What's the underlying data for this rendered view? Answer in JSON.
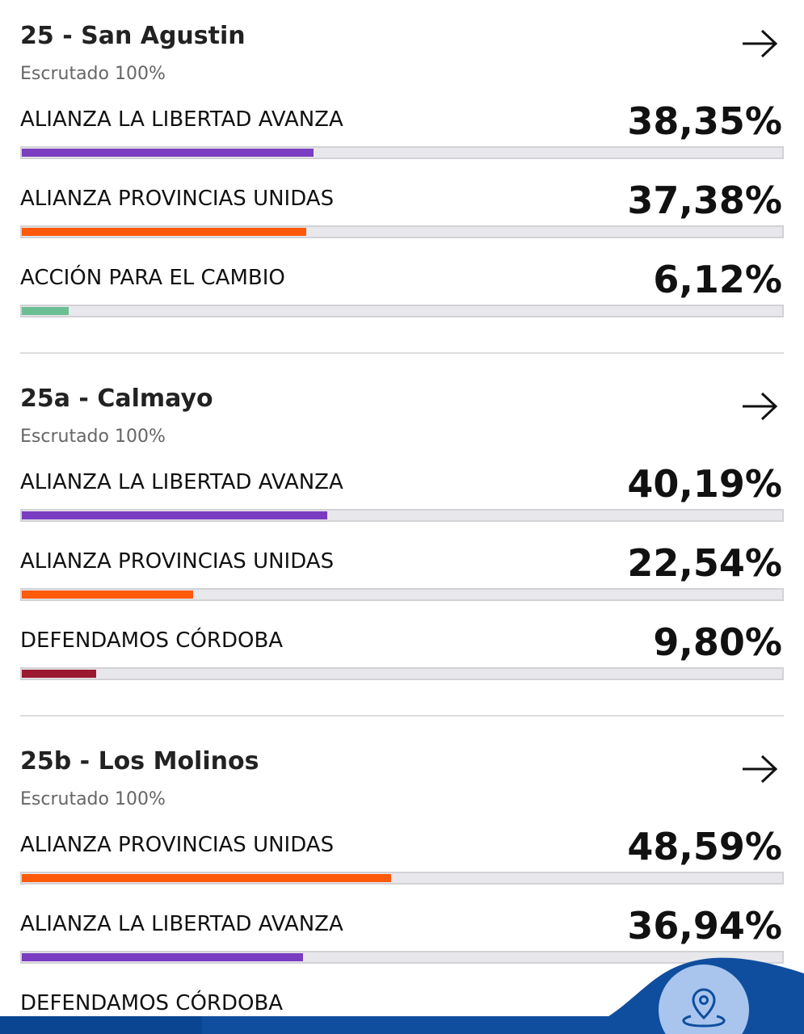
{
  "bar_range": [
    0,
    100
  ],
  "sections": [
    {
      "title": "25 - San Agustin",
      "status": "Escrutado 100%",
      "results": [
        {
          "party": "ALIANZA LA LIBERTAD AVANZA",
          "color": "#7a3cc0",
          "pct": {
            "value": 38.35,
            "label": "38,35%"
          }
        },
        {
          "party": "ALIANZA PROVINCIAS UNIDAS",
          "color": "#ff5a0c",
          "pct": {
            "value": 37.38,
            "label": "37,38%"
          }
        },
        {
          "party": "ACCIÓN PARA EL CAMBIO",
          "color": "#6cbf94",
          "pct": {
            "value": 6.12,
            "label": "6,12%"
          }
        }
      ]
    },
    {
      "title": "25a - Calmayo",
      "status": "Escrutado 100%",
      "results": [
        {
          "party": "ALIANZA LA LIBERTAD AVANZA",
          "color": "#7a3cc0",
          "pct": {
            "value": 40.19,
            "label": "40,19%"
          }
        },
        {
          "party": "ALIANZA PROVINCIAS UNIDAS",
          "color": "#ff5a0c",
          "pct": {
            "value": 22.54,
            "label": "22,54%"
          }
        },
        {
          "party": "DEFENDAMOS CÓRDOBA",
          "color": "#9a1830",
          "pct": {
            "value": 9.8,
            "label": "9,80%"
          }
        }
      ]
    },
    {
      "title": "25b - Los Molinos",
      "status": "Escrutado 100%",
      "results": [
        {
          "party": "ALIANZA PROVINCIAS UNIDAS",
          "color": "#ff5a0c",
          "pct": {
            "value": 48.59,
            "label": "48,59%"
          }
        },
        {
          "party": "ALIANZA LA LIBERTAD AVANZA",
          "color": "#7a3cc0",
          "pct": {
            "value": 36.94,
            "label": "36,94%"
          }
        },
        {
          "party": "DEFENDAMOS CÓRDOBA"
        }
      ]
    }
  ]
}
